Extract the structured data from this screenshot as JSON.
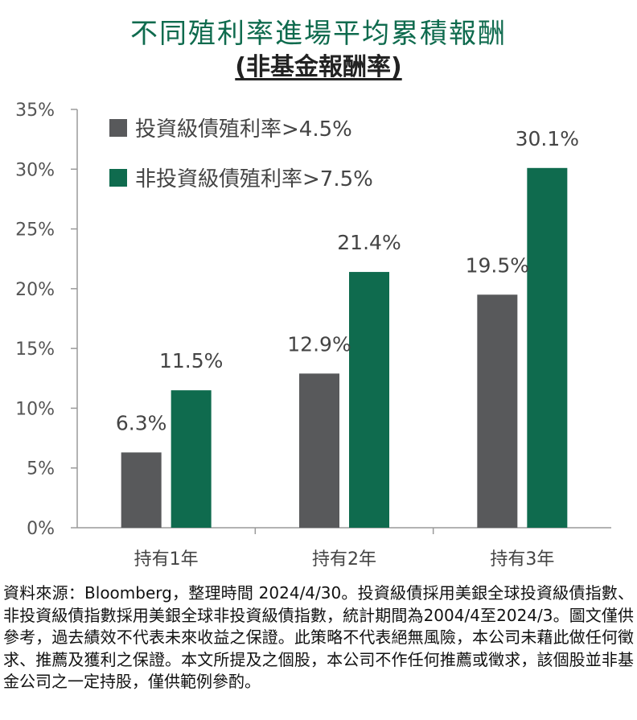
{
  "title": "不同殖利率進場平均累積報酬",
  "subtitle": "(非基金報酬率)",
  "chart_data": {
    "type": "bar",
    "categories": [
      "持有1年",
      "持有2年",
      "持有3年"
    ],
    "series": [
      {
        "name": "投資級債殖利率>4.5%",
        "values": [
          6.3,
          12.9,
          19.5
        ],
        "labels": [
          "6.3%",
          "12.9%",
          "19.5%"
        ],
        "color": "#58595b"
      },
      {
        "name": "非投資級債殖利率>7.5%",
        "values": [
          11.5,
          21.4,
          30.1
        ],
        "labels": [
          "11.5%",
          "21.4%",
          "30.1%"
        ],
        "color": "#0f6b4e"
      }
    ],
    "ylim": [
      0,
      35
    ],
    "yticks": [
      "0%",
      "5%",
      "10%",
      "15%",
      "20%",
      "25%",
      "30%",
      "35%"
    ],
    "grid": false,
    "legend": "top-left"
  },
  "footnote": "資料來源：Bloomberg，整理時間 2024/4/30。投資級債採用美銀全球投資級債指數、非投資級債指數採用美銀全球非投資級債指數，統計期間為2004/4至2024/3。圖文僅供參考，過去績效不代表未來收益之保證。此策略不代表絕無風險，本公司未藉此做任何徵求、推薦及獲利之保證。本文所提及之個股，本公司不作任何推薦或徵求，該個股並非基金公司之一定持股，僅供範例參酌。"
}
